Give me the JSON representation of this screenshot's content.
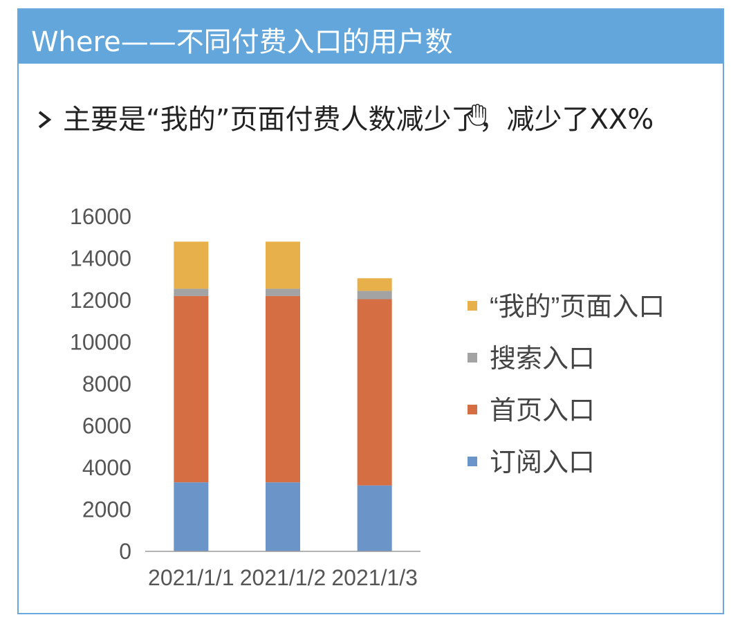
{
  "slide": {
    "title": "Where——不同付费入口的用户数",
    "bullet": "主要是“我的”页面付费人数减少了，减少了XX%",
    "header_color": "#63a6db",
    "border_color": "#6aa7dc"
  },
  "chart_data": {
    "type": "bar",
    "stacked": true,
    "title": "",
    "xlabel": "",
    "ylabel": "",
    "categories": [
      "2021/1/1",
      "2021/1/2",
      "2021/1/3"
    ],
    "yticks": [
      "0",
      "2000",
      "4000",
      "6000",
      "8000",
      "10000",
      "12000",
      "14000",
      "16000"
    ],
    "ylim": [
      0,
      16000
    ],
    "grid": false,
    "legend_position": "right",
    "series": [
      {
        "name": "订阅入口",
        "color": "#6b95c9",
        "values": [
          3300,
          3300,
          3150
        ]
      },
      {
        "name": "首页入口",
        "color": "#d56e43",
        "values": [
          8900,
          8900,
          8900
        ]
      },
      {
        "name": "搜索入口",
        "color": "#a3a3a3",
        "values": [
          350,
          350,
          400
        ]
      },
      {
        "name": "“我的”页面入口",
        "color": "#e8b04a",
        "values": [
          2250,
          2250,
          600
        ]
      }
    ]
  }
}
